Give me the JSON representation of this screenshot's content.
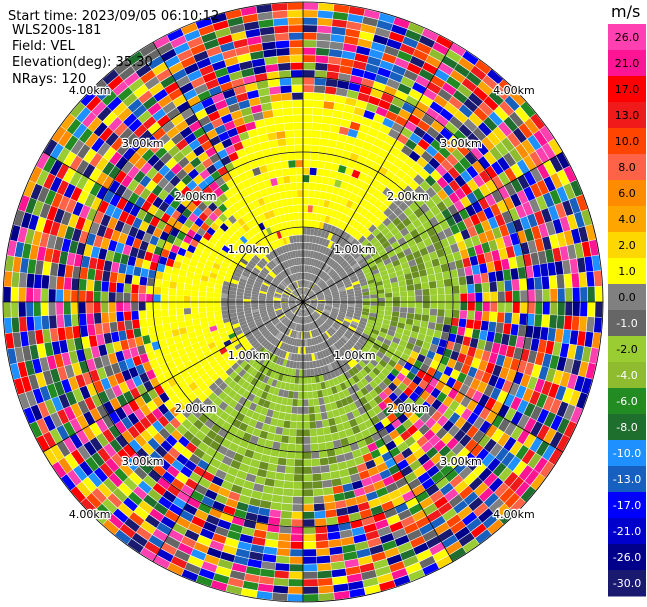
{
  "header": {
    "start_time": "Start time: 2023/09/05 06:10:12",
    "instrument": "WLS200s-181",
    "field": "Field: VEL",
    "elevation": "Elevation(deg): 35.30",
    "nrays": "NRays: 120"
  },
  "chart_data": {
    "type": "heatmap",
    "projection": "polar (PPI scan)",
    "field": "VEL",
    "unit": "m/s",
    "n_rays": 120,
    "elevation_deg": 35.3,
    "range_rings_km": [
      1.0,
      2.0,
      3.0,
      4.0
    ],
    "range_ring_labels": [
      "1.00km",
      "2.00km",
      "3.00km",
      "4.00km"
    ],
    "max_range_km": 4.0,
    "spoke_angles_deg": [
      0,
      30,
      60,
      90,
      120,
      150,
      180,
      210,
      240,
      270,
      300,
      330
    ],
    "colorbar": {
      "unit": "m/s",
      "ticks": [
        "26.0",
        "21.0",
        "17.0",
        "13.0",
        "10.0",
        "8.0",
        "6.0",
        "4.0",
        "2.0",
        "1.0",
        "0.0",
        "-1.0",
        "-2.0",
        "-4.0",
        "-6.0",
        "-8.0",
        "-10.0",
        "-13.0",
        "-17.0",
        "-21.0",
        "-26.0",
        "-30.0"
      ],
      "colors": [
        "#ff40b0",
        "#ff1493",
        "#ff0000",
        "#f01a1a",
        "#ff4500",
        "#ff6347",
        "#ff8c00",
        "#ffa500",
        "#ffd700",
        "#ffff00",
        "#808080",
        "#666666",
        "#9acd32",
        "#8fbc2f",
        "#228b22",
        "#1e6e2e",
        "#1e90ff",
        "#1860c0",
        "#0000ff",
        "#0000cd",
        "#00008b",
        "#191970"
      ]
    },
    "observed_pattern": [
      {
        "region": "inner 0-1 km",
        "value_ms": 0.0,
        "color": "#808080"
      },
      {
        "region": "north/west 1-2.5 km",
        "value_ms": 1.0,
        "color": "#ffff00"
      },
      {
        "region": "south/east 1-2.5 km",
        "value_ms": -2.0,
        "color": "#9acd32"
      },
      {
        "region": "beyond 2.5 km",
        "value_ms": "noise (all values)",
        "color": "mixed"
      }
    ]
  },
  "colors": {
    "zero": "#808080",
    "positive_small": "#ffff00",
    "negative_small": "#9acd32",
    "ring_line": "#000000"
  }
}
